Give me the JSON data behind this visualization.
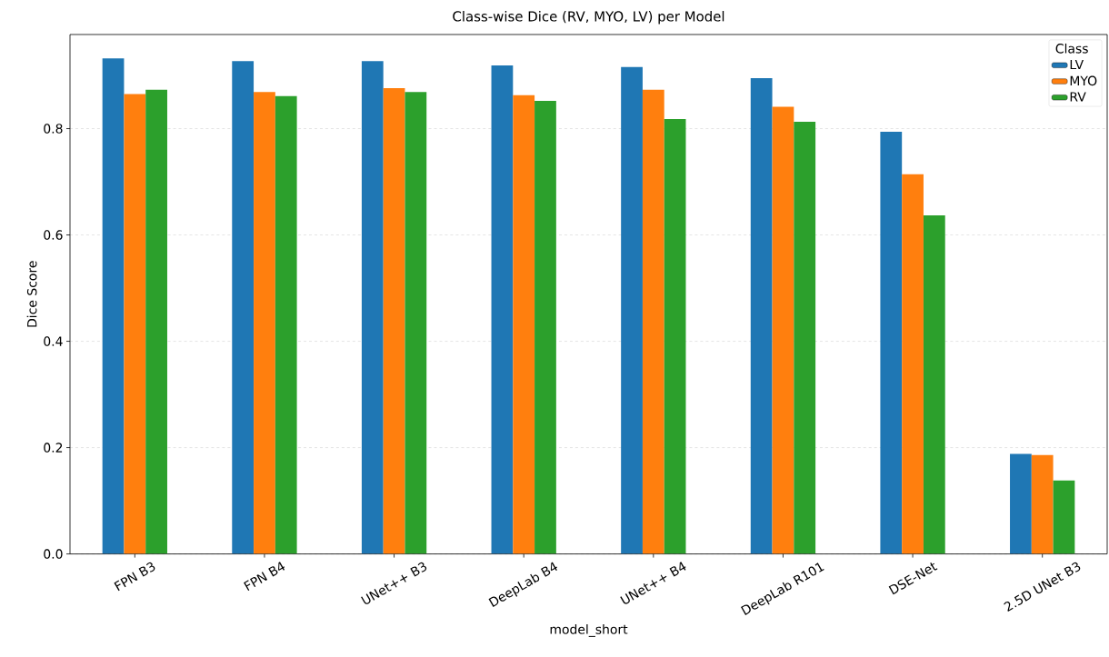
{
  "chart_data": {
    "type": "bar",
    "title": "Class-wise Dice (RV, MYO, LV) per Model",
    "xlabel": "model_short",
    "ylabel": "Dice Score",
    "legend_title": "Class",
    "categories": [
      "FPN B3",
      "FPN B4",
      "UNet++ B3",
      "DeepLab B4",
      "UNet++ B4",
      "DeepLab R101",
      "DSE-Net",
      "2.5D UNet B3"
    ],
    "series": [
      {
        "name": "LV",
        "color": "#1f77b4",
        "values": [
          0.932,
          0.927,
          0.927,
          0.919,
          0.916,
          0.895,
          0.794,
          0.188
        ]
      },
      {
        "name": "MYO",
        "color": "#ff7f0e",
        "values": [
          0.865,
          0.869,
          0.876,
          0.863,
          0.873,
          0.841,
          0.714,
          0.186
        ]
      },
      {
        "name": "RV",
        "color": "#2ca02c",
        "values": [
          0.873,
          0.861,
          0.869,
          0.852,
          0.818,
          0.813,
          0.637,
          0.138
        ]
      }
    ],
    "ylim": [
      0,
      0.977
    ],
    "yticks": [
      {
        "value": 0,
        "label": "0.0"
      },
      0.2,
      0.4,
      0.6,
      0.8
    ],
    "grid": "y",
    "legend": "top right"
  }
}
